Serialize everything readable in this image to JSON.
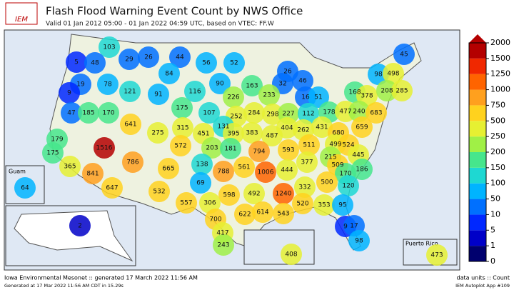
{
  "header": {
    "logo": "IEM",
    "title": "Flash Flood Warning Event Count by NWS Office",
    "subtitle": "Valid 01 Jan 2012 05:00 - 01 Jan 2022 04:59 UTC, based on VTEC: FF.W"
  },
  "map": {
    "office_counts": [
      103,
      5,
      48,
      29,
      26,
      44,
      56,
      52,
      26,
      45,
      98,
      498,
      19,
      78,
      121,
      84,
      91,
      116,
      90,
      163,
      32,
      46,
      226,
      233,
      16,
      51,
      168,
      378,
      208,
      285,
      9,
      47,
      185,
      170,
      175,
      107,
      252,
      284,
      298,
      227,
      112,
      178,
      477,
      240,
      683,
      641,
      275,
      315,
      451,
      131,
      395,
      383,
      487,
      404,
      262,
      431,
      680,
      659,
      179,
      1516,
      572,
      203,
      181,
      794,
      593,
      511,
      499,
      524,
      175,
      365,
      841,
      786,
      665,
      138,
      788,
      561,
      1006,
      444,
      377,
      215,
      509,
      445,
      170,
      186,
      647,
      532,
      69,
      598,
      492,
      1240,
      332,
      500,
      120,
      557,
      306,
      520,
      353,
      95,
      700,
      622,
      614,
      543,
      9,
      17,
      417,
      243,
      98,
      408,
      473,
      64,
      2
    ],
    "insets": {
      "guam": "Guam",
      "puerto_rico": "Puerto Rico"
    }
  },
  "colorbar": {
    "ticks": [
      0,
      1,
      5,
      10,
      50,
      100,
      150,
      200,
      250,
      500,
      750,
      1000,
      1250,
      1500,
      2000
    ],
    "colors": [
      "#00006e",
      "#0000c8",
      "#0028ff",
      "#0070ff",
      "#00b4ff",
      "#1ed8d2",
      "#46e68c",
      "#a0f046",
      "#e6f032",
      "#ffd21e",
      "#ffa01e",
      "#ff6400",
      "#f02800",
      "#b40000"
    ]
  },
  "footer": {
    "left_1": "Iowa Environmental Mesonet :: generated 17 March 2022 11:56 AM",
    "left_2": "Generated at 17 Mar 2022 11:56 AM CDT in 15.29s",
    "right_1": "data units :: Count",
    "right_2": "IEM Autoplot App #109"
  }
}
